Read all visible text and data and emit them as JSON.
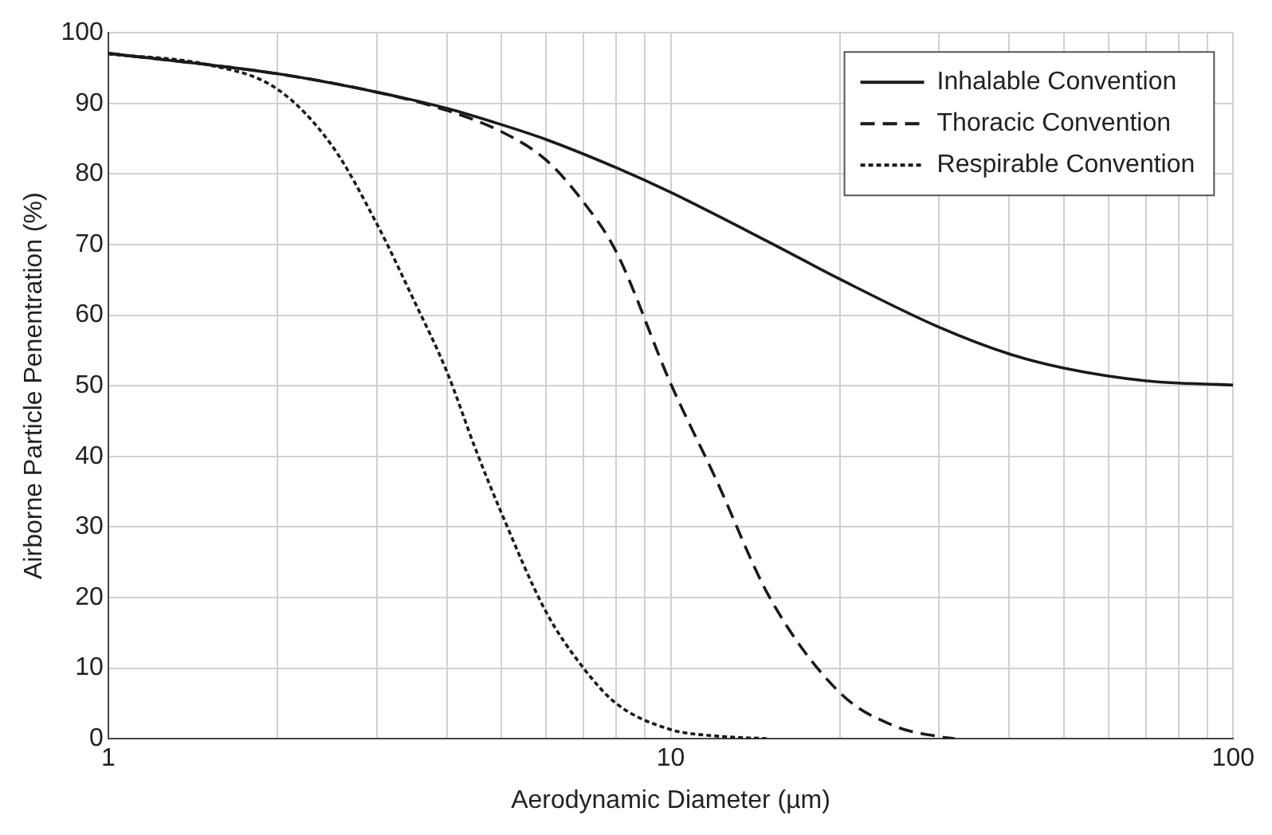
{
  "chart_data": {
    "type": "line",
    "xlabel": "Aerodynamic Diameter (µm)",
    "ylabel": "Airborne Particle Penentration (%)",
    "log": "x",
    "xlim": [
      1,
      100
    ],
    "ylim": [
      0,
      100
    ],
    "xticks": [
      1,
      {
        "value": 2,
        "label": null
      },
      {
        "value": 3,
        "label": null
      },
      {
        "value": 4,
        "label": null
      },
      {
        "value": 5,
        "label": null
      },
      {
        "value": 6,
        "label": null
      },
      {
        "value": 7,
        "label": null
      },
      {
        "value": 8,
        "label": null
      },
      {
        "value": 9,
        "label": null
      },
      10,
      {
        "value": 20,
        "label": null
      },
      {
        "value": 30,
        "label": null
      },
      {
        "value": 40,
        "label": null
      },
      {
        "value": 50,
        "label": null
      },
      {
        "value": 60,
        "label": null
      },
      {
        "value": 70,
        "label": null
      },
      {
        "value": 80,
        "label": null
      },
      {
        "value": 90,
        "label": null
      },
      100
    ],
    "yticks": [
      0,
      10,
      20,
      30,
      40,
      50,
      60,
      70,
      80,
      90,
      100
    ],
    "grid": true,
    "legend": "top right",
    "marker": "none",
    "series": [
      {
        "name": "Inhalable Convention",
        "color": "#1a1a1a",
        "line_style": "solid",
        "x": [
          1,
          2,
          3,
          4,
          5,
          6,
          8,
          10,
          15,
          20,
          30,
          40,
          50,
          70,
          100
        ],
        "values": [
          97.1,
          94.2,
          91.6,
          89.3,
          87,
          84.9,
          80.9,
          77.4,
          70.3,
          65.1,
          58.3,
          54.5,
          52.5,
          50.7,
          50.1
        ]
      },
      {
        "name": "Thoracic Convention",
        "color": "#1a1a1a",
        "line_style": "dashed",
        "x": [
          1,
          2,
          3,
          4,
          5,
          6,
          7,
          8,
          10,
          12,
          15,
          20,
          25,
          30,
          32
        ],
        "values": [
          97.1,
          94.2,
          91.6,
          89,
          86,
          82,
          76,
          69,
          50.3,
          37,
          20,
          6.5,
          1.8,
          0.3,
          0
        ]
      },
      {
        "name": "Respirable Convention",
        "color": "#1a1a1a",
        "line_style": "dotted",
        "x": [
          1,
          1.5,
          2,
          2.5,
          3,
          3.5,
          4,
          4.5,
          5,
          6,
          7,
          8,
          10,
          12,
          15
        ],
        "values": [
          97,
          95.5,
          92,
          84,
          73,
          62,
          52,
          41,
          32,
          18,
          10,
          5,
          1.3,
          0.4,
          0
        ]
      }
    ]
  }
}
